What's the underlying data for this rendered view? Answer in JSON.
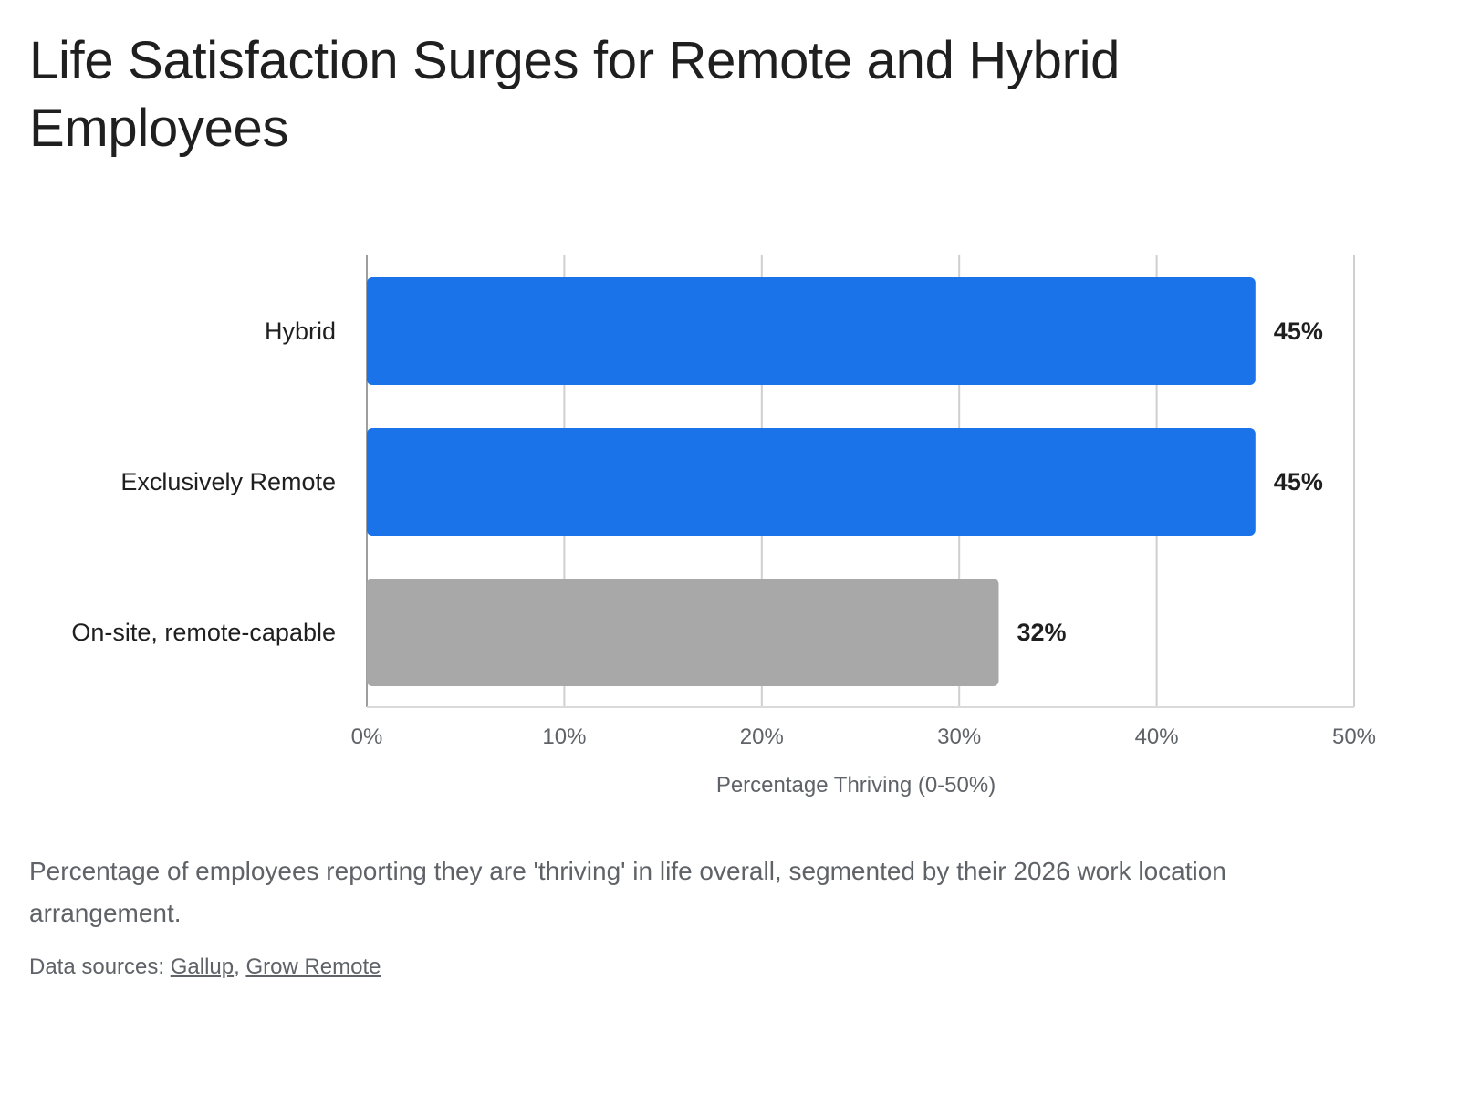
{
  "title": "Life Satisfaction Surges for Remote and Hybrid Employees",
  "caption": "Percentage of employees reporting they are 'thriving' in life overall, segmented by their 2026 work location arrangement.",
  "sources": {
    "prefix": "Data sources: ",
    "separator": ", ",
    "links": [
      "Gallup",
      "Grow Remote"
    ]
  },
  "chart_data": {
    "type": "bar",
    "orientation": "horizontal",
    "categories": [
      "Hybrid",
      "Exclusively Remote",
      "On-site, remote-capable"
    ],
    "values": [
      45,
      45,
      32
    ],
    "value_labels": [
      "45%",
      "45%",
      "32%"
    ],
    "colors": [
      "#1a73e8",
      "#1a73e8",
      "#a8a8a8"
    ],
    "xlabel": "Percentage Thriving (0-50%)",
    "ylabel": "",
    "xlim": [
      0,
      50
    ],
    "xticks": [
      0,
      10,
      20,
      30,
      40,
      50
    ],
    "xtick_labels": [
      "0%",
      "10%",
      "20%",
      "30%",
      "40%",
      "50%"
    ],
    "grid": true,
    "legend": "none"
  }
}
